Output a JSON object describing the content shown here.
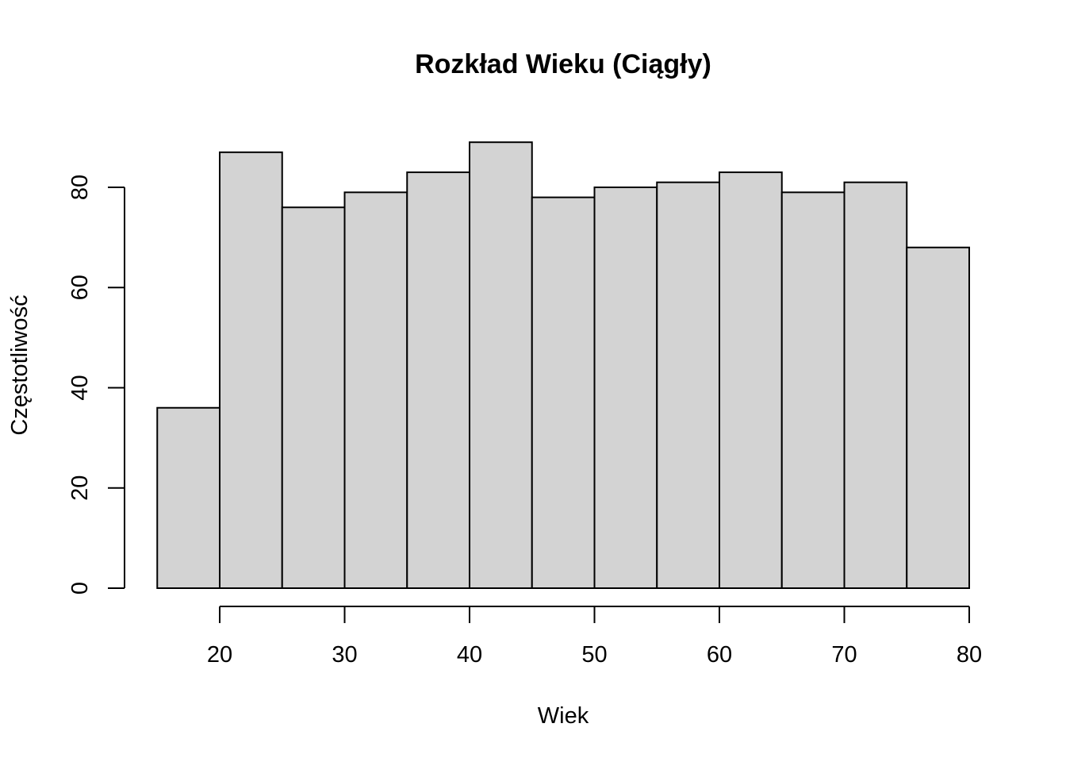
{
  "chart_data": {
    "type": "bar",
    "subtype": "histogram",
    "title": "Rozkład Wieku (Ciągły)",
    "xlabel": "Wiek",
    "ylabel": "Częstotliwość",
    "bins": [
      {
        "start": 15,
        "end": 20,
        "count": 36
      },
      {
        "start": 20,
        "end": 25,
        "count": 87
      },
      {
        "start": 25,
        "end": 30,
        "count": 76
      },
      {
        "start": 30,
        "end": 35,
        "count": 79
      },
      {
        "start": 35,
        "end": 40,
        "count": 83
      },
      {
        "start": 40,
        "end": 45,
        "count": 89
      },
      {
        "start": 45,
        "end": 50,
        "count": 78
      },
      {
        "start": 50,
        "end": 55,
        "count": 80
      },
      {
        "start": 55,
        "end": 60,
        "count": 81
      },
      {
        "start": 60,
        "end": 65,
        "count": 83
      },
      {
        "start": 65,
        "end": 70,
        "count": 79
      },
      {
        "start": 70,
        "end": 75,
        "count": 81
      },
      {
        "start": 75,
        "end": 80,
        "count": 68
      }
    ],
    "x_ticks": [
      "20",
      "30",
      "40",
      "50",
      "60",
      "70",
      "80"
    ],
    "y_ticks": [
      "0",
      "20",
      "40",
      "60",
      "80"
    ],
    "xlim": [
      15,
      80
    ],
    "ylim": [
      0,
      89
    ],
    "grid": false,
    "bar_color": "#d3d3d3",
    "border_color": "#000000"
  }
}
